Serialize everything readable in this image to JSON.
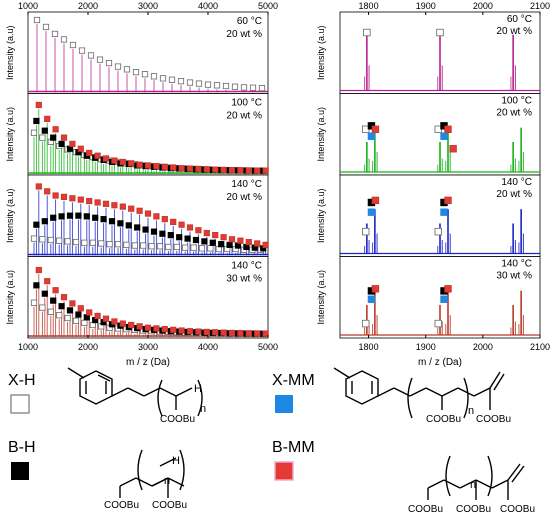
{
  "colors": {
    "x_h": "#ffffff",
    "b_h": "#000000",
    "x_mm": "#1e88e5",
    "b_mm": "#e53935",
    "panel_60": "#b8218f",
    "panel_100": "#19b01b",
    "panel_140_20": "#1a24c8",
    "panel_140_30": "#b83a28"
  },
  "legend": {
    "xh_label": "X-H",
    "bh_label": "B-H",
    "xmm_label": "X-MM",
    "bmm_label": "B-MM",
    "structure_labels": {
      "n": "n",
      "h": "H",
      "cooBu": "COOBu"
    }
  },
  "chart_data": [
    {
      "type": "line",
      "panel": "left",
      "xlabel": "m / z (Da)",
      "ylabel": "Intensity (a.u)",
      "xlim": [
        1000,
        5000
      ],
      "xticks": [
        1000,
        2000,
        3000,
        4000,
        5000
      ],
      "grid": false,
      "subplots": [
        {
          "label_temp": "60 °C",
          "label_wt": "20 wt %",
          "color": "#b8218f",
          "series": [
            {
              "name": "X-H",
              "x": [
                1150,
                1300,
                1450,
                1600,
                1750,
                1900,
                2050,
                2200,
                2350,
                2500,
                2650,
                2800,
                2950,
                3100,
                3250,
                3400,
                3550,
                3700,
                3850,
                4000,
                4150,
                4300,
                4450,
                4600,
                4750,
                4900
              ],
              "y": [
                1.0,
                0.9,
                0.8,
                0.72,
                0.64,
                0.56,
                0.49,
                0.43,
                0.38,
                0.33,
                0.29,
                0.25,
                0.22,
                0.19,
                0.16,
                0.14,
                0.12,
                0.1,
                0.085,
                0.07,
                0.06,
                0.05,
                0.04,
                0.03,
                0.025,
                0.02
              ]
            }
          ]
        },
        {
          "label_temp": "100 °C",
          "label_wt": "20 wt %",
          "color": "#19b01b",
          "series": [
            {
              "name": "X-H",
              "x": [
                1100,
                1240,
                1380,
                1520,
                1660,
                1800,
                1940,
                2080,
                2220,
                2360,
                2500,
                2640,
                2780,
                2920,
                3060,
                3200,
                3340,
                3480,
                3620,
                3760,
                3900,
                4040,
                4180,
                4320,
                4460,
                4600,
                4740,
                4880
              ],
              "y": [
                0.55,
                0.48,
                0.42,
                0.36,
                0.31,
                0.27,
                0.23,
                0.2,
                0.17,
                0.15,
                0.13,
                0.11,
                0.1,
                0.08,
                0.07,
                0.06,
                0.05,
                0.04,
                0.035,
                0.03,
                0.025,
                0.02,
                0.015,
                0.012,
                0.01,
                0.008,
                0.006,
                0.005
              ]
            },
            {
              "name": "B-H",
              "x": [
                1140,
                1280,
                1420,
                1560,
                1700,
                1840,
                1980,
                2120,
                2260,
                2400,
                2540,
                2680,
                2820,
                2960,
                3100,
                3240,
                3380,
                3520,
                3660,
                3800,
                3940,
                4080,
                4220,
                4360,
                4500,
                4640,
                4780,
                4920
              ],
              "y": [
                0.72,
                0.58,
                0.48,
                0.39,
                0.32,
                0.27,
                0.22,
                0.19,
                0.16,
                0.13,
                0.11,
                0.1,
                0.08,
                0.07,
                0.06,
                0.05,
                0.04,
                0.035,
                0.03,
                0.025,
                0.02,
                0.016,
                0.013,
                0.01,
                0.008,
                0.006,
                0.005,
                0.004
              ]
            },
            {
              "name": "B-MM",
              "x": [
                1180,
                1320,
                1460,
                1600,
                1740,
                1880,
                2020,
                2160,
                2300,
                2440,
                2580,
                2720,
                2860,
                3000,
                3140,
                3280,
                3420,
                3560,
                3700,
                3840,
                3980,
                4120,
                4260,
                4400,
                4540,
                4680,
                4820,
                4960
              ],
              "y": [
                0.95,
                0.75,
                0.6,
                0.48,
                0.39,
                0.32,
                0.26,
                0.22,
                0.18,
                0.15,
                0.13,
                0.11,
                0.09,
                0.08,
                0.07,
                0.06,
                0.05,
                0.04,
                0.035,
                0.03,
                0.025,
                0.02,
                0.016,
                0.013,
                0.01,
                0.008,
                0.006,
                0.005
              ]
            }
          ]
        },
        {
          "label_temp": "140 °C",
          "label_wt": "20 wt %",
          "color": "#1a24c8",
          "series": [
            {
              "name": "X-H",
              "x": [
                1100,
                1240,
                1380,
                1520,
                1660,
                1800,
                1940,
                2080,
                2220,
                2360,
                2500,
                2640,
                2780,
                2920,
                3060,
                3200,
                3340,
                3480,
                3620,
                3760,
                3900,
                4040,
                4180,
                4320,
                4460,
                4600,
                4740,
                4880
              ],
              "y": [
                0.2,
                0.19,
                0.18,
                0.17,
                0.16,
                0.15,
                0.14,
                0.14,
                0.13,
                0.12,
                0.12,
                0.11,
                0.1,
                0.1,
                0.09,
                0.09,
                0.08,
                0.08,
                0.07,
                0.07,
                0.06,
                0.06,
                0.05,
                0.05,
                0.05,
                0.04,
                0.04,
                0.04
              ]
            },
            {
              "name": "B-H",
              "x": [
                1140,
                1280,
                1420,
                1560,
                1700,
                1840,
                1980,
                2120,
                2260,
                2400,
                2540,
                2680,
                2820,
                2960,
                3100,
                3240,
                3380,
                3520,
                3660,
                3800,
                3940,
                4080,
                4220,
                4360,
                4500,
                4640,
                4780,
                4920
              ],
              "y": [
                0.4,
                0.45,
                0.5,
                0.52,
                0.53,
                0.53,
                0.52,
                0.5,
                0.48,
                0.45,
                0.42,
                0.39,
                0.36,
                0.33,
                0.3,
                0.27,
                0.25,
                0.22,
                0.2,
                0.18,
                0.16,
                0.14,
                0.12,
                0.11,
                0.1,
                0.08,
                0.07,
                0.06
              ]
            },
            {
              "name": "B-MM",
              "x": [
                1180,
                1320,
                1460,
                1600,
                1740,
                1880,
                2020,
                2160,
                2300,
                2440,
                2580,
                2720,
                2860,
                3000,
                3140,
                3280,
                3420,
                3560,
                3700,
                3840,
                3980,
                4120,
                4260,
                4400,
                4540,
                4680,
                4820,
                4960
              ],
              "y": [
                0.95,
                0.88,
                0.82,
                0.8,
                0.78,
                0.76,
                0.74,
                0.72,
                0.7,
                0.68,
                0.66,
                0.63,
                0.6,
                0.56,
                0.52,
                0.48,
                0.44,
                0.4,
                0.36,
                0.32,
                0.28,
                0.25,
                0.22,
                0.19,
                0.17,
                0.15,
                0.13,
                0.11
              ]
            }
          ]
        },
        {
          "label_temp": "140 °C",
          "label_wt": "30 wt %",
          "color": "#b83a28",
          "series": [
            {
              "name": "X-H",
              "x": [
                1100,
                1240,
                1380,
                1520,
                1660,
                1800,
                1940,
                2080,
                2220,
                2360,
                2500,
                2640,
                2780,
                2920,
                3060,
                3200,
                3340,
                3480,
                3620,
                3760,
                3900,
                4040,
                4180,
                4320,
                4460,
                4600,
                4740,
                4880
              ],
              "y": [
                0.45,
                0.38,
                0.32,
                0.27,
                0.23,
                0.19,
                0.16,
                0.13,
                0.11,
                0.09,
                0.08,
                0.07,
                0.06,
                0.05,
                0.04,
                0.035,
                0.03,
                0.025,
                0.02,
                0.016,
                0.013,
                0.01,
                0.008,
                0.006,
                0.005,
                0.004,
                0.003,
                0.002
              ]
            },
            {
              "name": "B-H",
              "x": [
                1140,
                1280,
                1420,
                1560,
                1700,
                1840,
                1980,
                2120,
                2260,
                2400,
                2540,
                2680,
                2820,
                2960,
                3100,
                3240,
                3380,
                3520,
                3660,
                3800,
                3940,
                4080,
                4220,
                4360,
                4500,
                4640,
                4780,
                4920
              ],
              "y": [
                0.7,
                0.58,
                0.48,
                0.4,
                0.34,
                0.28,
                0.24,
                0.2,
                0.17,
                0.14,
                0.12,
                0.1,
                0.085,
                0.07,
                0.06,
                0.05,
                0.04,
                0.035,
                0.03,
                0.025,
                0.02,
                0.016,
                0.013,
                0.01,
                0.008,
                0.006,
                0.005,
                0.004
              ]
            },
            {
              "name": "B-MM",
              "x": [
                1180,
                1320,
                1460,
                1600,
                1740,
                1880,
                2020,
                2160,
                2300,
                2440,
                2580,
                2720,
                2860,
                3000,
                3140,
                3280,
                3420,
                3560,
                3700,
                3840,
                3980,
                4120,
                4260,
                4400,
                4540,
                4680,
                4820,
                4960
              ],
              "y": [
                0.92,
                0.76,
                0.63,
                0.53,
                0.44,
                0.37,
                0.31,
                0.26,
                0.22,
                0.18,
                0.15,
                0.13,
                0.11,
                0.09,
                0.08,
                0.07,
                0.06,
                0.05,
                0.04,
                0.035,
                0.03,
                0.025,
                0.02,
                0.016,
                0.013,
                0.01,
                0.008,
                0.006
              ]
            }
          ]
        }
      ]
    },
    {
      "type": "line",
      "panel": "right",
      "xlabel": "m / z (Da)",
      "ylabel": "Intensity (a.u)",
      "xlim": [
        1750,
        2100
      ],
      "xticks": [
        1800,
        1900,
        2000,
        2100
      ],
      "grid": false,
      "subplots": [
        {
          "label_temp": "60 °C",
          "label_wt": "20 wt %",
          "color": "#b8218f",
          "peaks": [
            1797,
            1925,
            2053
          ],
          "markers": [
            {
              "name": "X-H",
              "x": 1797,
              "y": 0.82
            },
            {
              "name": "X-H",
              "x": 1925,
              "y": 0.82
            }
          ]
        },
        {
          "label_temp": "100 °C",
          "label_wt": "20 wt %",
          "color": "#19b01b",
          "peaks": [
            1797,
            1811,
            1925,
            1939,
            2053,
            2067
          ],
          "markers": [
            {
              "name": "X-H",
              "x": 1795,
              "y": 0.6
            },
            {
              "name": "B-H",
              "x": 1805,
              "y": 0.65
            },
            {
              "name": "X-MM",
              "x": 1805,
              "y": 0.5
            },
            {
              "name": "B-MM",
              "x": 1812,
              "y": 0.6
            },
            {
              "name": "X-H",
              "x": 1922,
              "y": 0.6
            },
            {
              "name": "B-H",
              "x": 1932,
              "y": 0.65
            },
            {
              "name": "X-MM",
              "x": 1932,
              "y": 0.5
            },
            {
              "name": "B-MM",
              "x": 1939,
              "y": 0.6
            },
            {
              "name": "B-MM",
              "x": 1948,
              "y": 0.32
            }
          ]
        },
        {
          "label_temp": "140 °C",
          "label_wt": "20 wt %",
          "color": "#1a24c8",
          "peaks": [
            1797,
            1811,
            1925,
            1939,
            2053,
            2067
          ],
          "markers": [
            {
              "name": "X-H",
              "x": 1795,
              "y": 0.3
            },
            {
              "name": "B-H",
              "x": 1805,
              "y": 0.72
            },
            {
              "name": "X-MM",
              "x": 1805,
              "y": 0.58
            },
            {
              "name": "B-MM",
              "x": 1812,
              "y": 0.75
            },
            {
              "name": "X-H",
              "x": 1922,
              "y": 0.3
            },
            {
              "name": "B-H",
              "x": 1932,
              "y": 0.72
            },
            {
              "name": "X-MM",
              "x": 1932,
              "y": 0.58
            },
            {
              "name": "B-MM",
              "x": 1939,
              "y": 0.75
            }
          ]
        },
        {
          "label_temp": "140 °C",
          "label_wt": "30 wt %",
          "color": "#b83a28",
          "peaks": [
            1797,
            1811,
            1925,
            1939,
            2053,
            2067
          ],
          "markers": [
            {
              "name": "X-H",
              "x": 1795,
              "y": 0.15
            },
            {
              "name": "B-H",
              "x": 1805,
              "y": 0.62
            },
            {
              "name": "X-MM",
              "x": 1805,
              "y": 0.5
            },
            {
              "name": "B-MM",
              "x": 1812,
              "y": 0.65
            },
            {
              "name": "X-H",
              "x": 1922,
              "y": 0.15
            },
            {
              "name": "B-H",
              "x": 1932,
              "y": 0.62
            },
            {
              "name": "X-MM",
              "x": 1932,
              "y": 0.5
            },
            {
              "name": "B-MM",
              "x": 1939,
              "y": 0.65
            }
          ]
        }
      ]
    }
  ]
}
